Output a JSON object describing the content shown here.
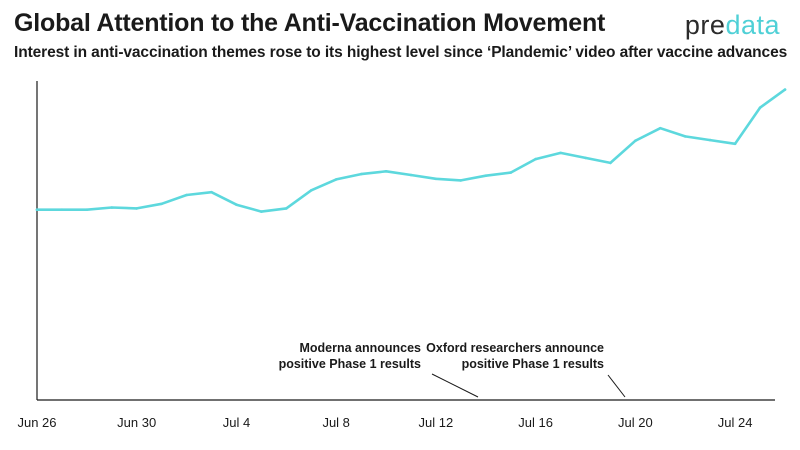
{
  "header": {
    "title": "Global Attention to the Anti-Vaccination Movement",
    "subtitle": "Interest in anti-vaccination themes rose to its highest level since ‘Plandemic’ video after vaccine advances"
  },
  "logo": {
    "part1": "pre",
    "part2": "data",
    "color_text": "#2b2b2b",
    "color_accent": "#4fd0d6"
  },
  "chart_data": {
    "type": "line",
    "title": "Global Attention to the Anti-Vaccination Movement",
    "subtitle": "Interest in anti-vaccination themes rose to its highest level since ‘Plandemic’ video after vaccine advances",
    "xlabel": "",
    "ylabel": "",
    "x_tick_labels": [
      "Jun 26",
      "Jun 30",
      "Jul 4",
      "Jul 8",
      "Jul 12",
      "Jul 16",
      "Jul 20",
      "Jul 24"
    ],
    "x_tick_days": [
      0,
      4,
      8,
      12,
      16,
      20,
      24,
      28
    ],
    "xlim": [
      0,
      29.6
    ],
    "ylim": [
      0,
      100
    ],
    "grid": false,
    "line_color": "#5dd8dd",
    "series": [
      {
        "x": [
          "Jun 26",
          "Jun 27",
          "Jun 28",
          "Jun 29",
          "Jun 30",
          "Jul 1",
          "Jul 2",
          "Jul 3",
          "Jul 4",
          "Jul 5",
          "Jul 6",
          "Jul 7",
          "Jul 8",
          "Jul 9",
          "Jul 10",
          "Jul 11",
          "Jul 12",
          "Jul 13",
          "Jul 14",
          "Jul 15",
          "Jul 16",
          "Jul 17",
          "Jul 18",
          "Jul 19",
          "Jul 20",
          "Jul 21",
          "Jul 22",
          "Jul 23",
          "Jul 24",
          "Jul 25",
          "Jul 26"
        ],
        "values": [
          61,
          61,
          61,
          61.7,
          61.4,
          62.9,
          65.7,
          66.6,
          62.6,
          60.4,
          61.4,
          67.2,
          70.7,
          72.4,
          73.3,
          72.1,
          70.9,
          70.4,
          71.9,
          72.9,
          77.2,
          79.2,
          77.6,
          76.0,
          83.1,
          87.1,
          84.5,
          83.3,
          82.1,
          93.7,
          99.5
        ]
      }
    ],
    "annotations": [
      {
        "line1": "Moderna announces",
        "line2": "positive Phase 1 results",
        "date": "Jul 14"
      },
      {
        "line1": "Oxford researchers announce",
        "line2": "positive Phase 1 results",
        "date": "Jul 20"
      }
    ]
  }
}
